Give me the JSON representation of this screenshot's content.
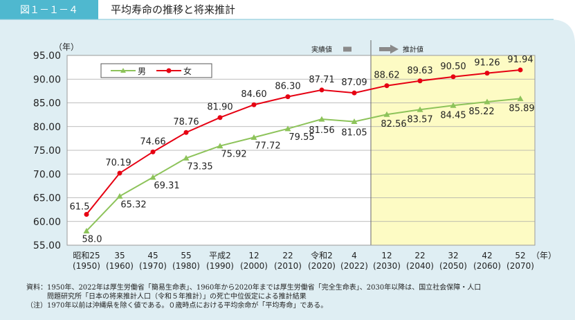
{
  "header": {
    "figure_number": "図１－１－４",
    "title": "平均寿命の推移と将来推計"
  },
  "colors": {
    "panel_bg": "#dfeef3",
    "header_badge": "#4fb8cf",
    "forecast_bg": "#fdfbc4",
    "male": "#8dc35a",
    "female": "#e60012"
  },
  "chart_data": {
    "type": "line",
    "y_unit_label": "（年）",
    "x_unit_label": "（年）",
    "ylim": [
      55,
      95
    ],
    "y_ticks": [
      "55.00",
      "60.00",
      "65.00",
      "70.00",
      "75.00",
      "80.00",
      "85.00",
      "90.00",
      "95.00"
    ],
    "grid": true,
    "legend_position": "top-left",
    "categories": [
      "昭和25",
      "35",
      "45",
      "55",
      "平成2",
      "12",
      "22",
      "令和2",
      "4",
      "12",
      "22",
      "32",
      "42",
      "52"
    ],
    "categories_western": [
      "(1950)",
      "(1960)",
      "(1970)",
      "(1980)",
      "(1990)",
      "(2000)",
      "(2010)",
      "(2020)",
      "(2022)",
      "(2030)",
      "(2040)",
      "(2050)",
      "(2060)",
      "(2070)"
    ],
    "series": [
      {
        "name": "男",
        "values": [
          58.0,
          65.32,
          69.31,
          73.35,
          75.92,
          77.72,
          79.55,
          81.56,
          81.05,
          82.56,
          83.57,
          84.45,
          85.22,
          85.89
        ],
        "labels": [
          "58.0",
          "65.32",
          "69.31",
          "73.35",
          "75.92",
          "77.72",
          "79.55",
          "81.56",
          "81.05",
          "82.56",
          "83.57",
          "84.45",
          "85.22",
          "85.89"
        ]
      },
      {
        "name": "女",
        "values": [
          61.5,
          70.19,
          74.66,
          78.76,
          81.9,
          84.6,
          86.3,
          87.71,
          87.09,
          88.62,
          89.63,
          90.5,
          91.26,
          91.94
        ],
        "labels": [
          "61.5",
          "70.19",
          "74.66",
          "78.76",
          "81.90",
          "84.60",
          "86.30",
          "87.71",
          "87.09",
          "88.62",
          "89.63",
          "90.50",
          "91.26",
          "91.94"
        ]
      }
    ],
    "actual_label": "実績値",
    "forecast_label": "推計値",
    "forecast_start_index": 8
  },
  "footnotes": [
    "資料：1950年、2022年は厚生労働省「簡易生命表」、1960年から2020年までは厚生労働省「完全生命表」、2030年以降は、国立社会保障・人口",
    "　　　問題研究所「日本の将来推計人口（令和５年推計）」の死亡中位仮定による推計結果",
    "（注）1970年以前は沖縄県を除く値である。０歳時点における平均余命が「平均寿命」である。"
  ]
}
